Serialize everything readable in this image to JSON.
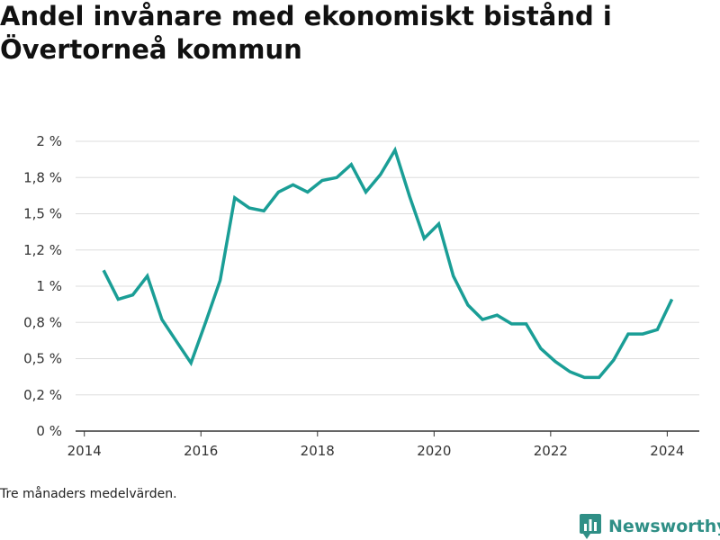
{
  "title": "Andel invånare med ekonomiskt bistånd i Övertorneå kommun",
  "footnote": "Tre månaders medelvärden.",
  "brand": {
    "name": "Newsworthy",
    "icon": "newsworthy-logo-icon"
  },
  "colors": {
    "line": "#1a9e96",
    "grid": "#dddddd",
    "axis": "#333333",
    "brand": "#2f8f86"
  },
  "chart_data": {
    "type": "line",
    "title": "Andel invånare med ekonomiskt bistånd i Övertorneå kommun",
    "xlabel": "",
    "ylabel": "",
    "grid": true,
    "legend": "none",
    "xlim": [
      2013.85,
      2024.55
    ],
    "ylim": [
      0,
      2
    ],
    "x_ticks": [
      2014,
      2016,
      2018,
      2020,
      2022,
      2024
    ],
    "x_tick_labels": [
      "2014",
      "2016",
      "2018",
      "2020",
      "2022",
      "2024"
    ],
    "y_ticks": [
      0,
      0.25,
      0.5,
      0.75,
      1,
      1.25,
      1.5,
      1.75,
      2
    ],
    "y_tick_labels": [
      "0 %",
      "0,2 %",
      "0,5 %",
      "0,8 %",
      "1 %",
      "1,2 %",
      "1,5 %",
      "1,8 %",
      "2 %"
    ],
    "series": [
      {
        "x": [
          2014.33,
          2014.58,
          2014.83,
          2015.08,
          2015.33,
          2015.58,
          2015.83,
          2016.08,
          2016.33,
          2016.58,
          2016.83,
          2017.08,
          2017.33,
          2017.58,
          2017.83,
          2018.08,
          2018.33,
          2018.58,
          2018.83,
          2019.08,
          2019.33,
          2019.58,
          2019.83,
          2020.08,
          2020.33,
          2020.58,
          2020.83,
          2021.08,
          2021.33,
          2021.58,
          2021.83,
          2022.08,
          2022.33,
          2022.58,
          2022.83,
          2023.08,
          2023.33,
          2023.58,
          2023.83,
          2024.08
        ],
        "values": [
          1.11,
          0.91,
          0.94,
          1.07,
          0.77,
          0.62,
          0.47,
          0.75,
          1.04,
          1.61,
          1.54,
          1.52,
          1.65,
          1.7,
          1.65,
          1.73,
          1.75,
          1.84,
          1.65,
          1.77,
          1.94,
          1.62,
          1.33,
          1.43,
          1.07,
          0.87,
          0.77,
          0.8,
          0.74,
          0.74,
          0.57,
          0.48,
          0.41,
          0.37,
          0.37,
          0.49,
          0.67,
          0.67,
          0.7,
          0.91
        ]
      }
    ]
  }
}
